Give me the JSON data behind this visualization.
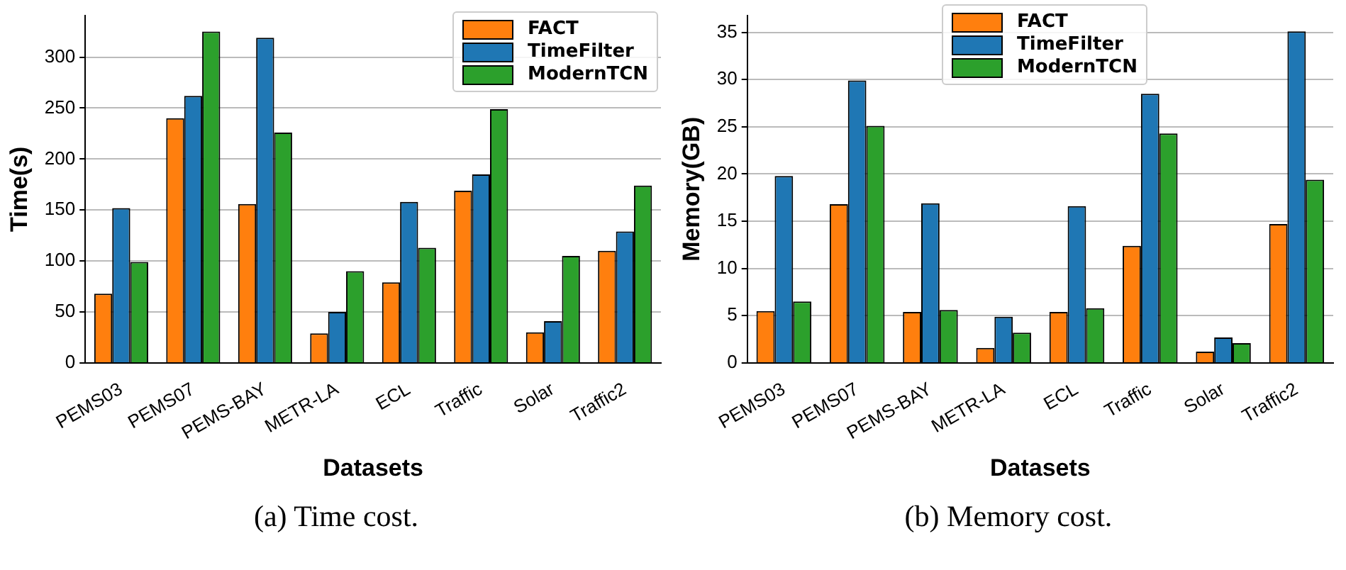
{
  "chart_data": [
    {
      "type": "bar",
      "xlabel": "Datasets",
      "ylabel": "Time(s)",
      "categories": [
        "PEMS03",
        "PEMS07",
        "PEMS-BAY",
        "METR-LA",
        "ECL",
        "Traffic",
        "Solar",
        "Traffic2"
      ],
      "series": [
        {
          "name": "FACT",
          "color": "#ff7f0e",
          "values": [
            68,
            240,
            156,
            29,
            79,
            169,
            30,
            110
          ]
        },
        {
          "name": "TimeFilter",
          "color": "#1f77b4",
          "values": [
            152,
            262,
            319,
            50,
            158,
            185,
            41,
            129
          ]
        },
        {
          "name": "ModernTCN",
          "color": "#2ca02c",
          "values": [
            99,
            325,
            226,
            90,
            113,
            249,
            105,
            174
          ]
        }
      ],
      "ylim": [
        0,
        341
      ],
      "yticks": [
        0,
        50,
        100,
        150,
        200,
        250,
        300
      ],
      "grid": "y",
      "legend": "top right",
      "annotations": [
        "(a) Time cost."
      ]
    },
    {
      "type": "bar",
      "xlabel": "Datasets",
      "ylabel": "Memory(GB)",
      "categories": [
        "PEMS03",
        "PEMS07",
        "PEMS-BAY",
        "METR-LA",
        "ECL",
        "Traffic",
        "Solar",
        "Traffic2"
      ],
      "series": [
        {
          "name": "FACT",
          "color": "#ff7f0e",
          "values": [
            5.5,
            16.8,
            5.4,
            1.6,
            5.4,
            12.4,
            1.2,
            14.7
          ]
        },
        {
          "name": "TimeFilter",
          "color": "#1f77b4",
          "values": [
            19.8,
            29.9,
            16.9,
            4.9,
            16.6,
            28.5,
            2.7,
            35.1
          ]
        },
        {
          "name": "ModernTCN",
          "color": "#2ca02c",
          "values": [
            6.5,
            25.1,
            5.6,
            3.2,
            5.8,
            24.3,
            2.1,
            19.4
          ]
        }
      ],
      "ylim": [
        0,
        36.8
      ],
      "yticks": [
        0,
        5,
        10,
        15,
        20,
        25,
        30,
        35
      ],
      "grid": "y",
      "legend": "top",
      "annotations": [
        "(b) Memory cost."
      ]
    }
  ]
}
